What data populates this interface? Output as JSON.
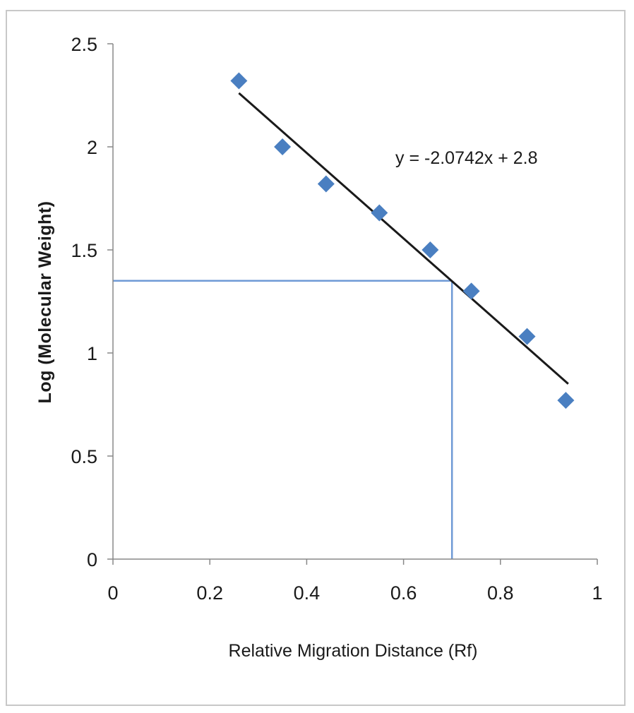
{
  "chart_data": {
    "type": "scatter",
    "title": "",
    "xlabel": "Relative Migration Distance (Rf)",
    "ylabel": "Log (Molecular  Weight)",
    "xlim": [
      0,
      1
    ],
    "ylim": [
      0,
      2.5
    ],
    "x_ticks": [
      "0",
      "0.2",
      "0.4",
      "0.6",
      "0.8",
      "1"
    ],
    "y_ticks": [
      "0",
      "0.5",
      "1",
      "1.5",
      "2",
      "2.5"
    ],
    "grid": false,
    "legend": "none",
    "marker_color": "#4a7fc1",
    "series": [
      {
        "x": [
          0.26,
          0.35,
          0.44,
          0.55,
          0.655,
          0.74,
          0.855,
          0.935
        ],
        "y": [
          2.32,
          2.0,
          1.82,
          1.68,
          1.5,
          1.3,
          1.08,
          0.77
        ]
      }
    ],
    "trendline": {
      "slope": -2.0742,
      "intercept": 2.8,
      "x_range": [
        0.26,
        0.94
      ],
      "color": "#1a1a1a",
      "equation_label": "y = -2.0742x + 2.8"
    },
    "reference_lines": {
      "x": 0.7,
      "y": 1.35,
      "color": "#6f9ad6"
    }
  }
}
